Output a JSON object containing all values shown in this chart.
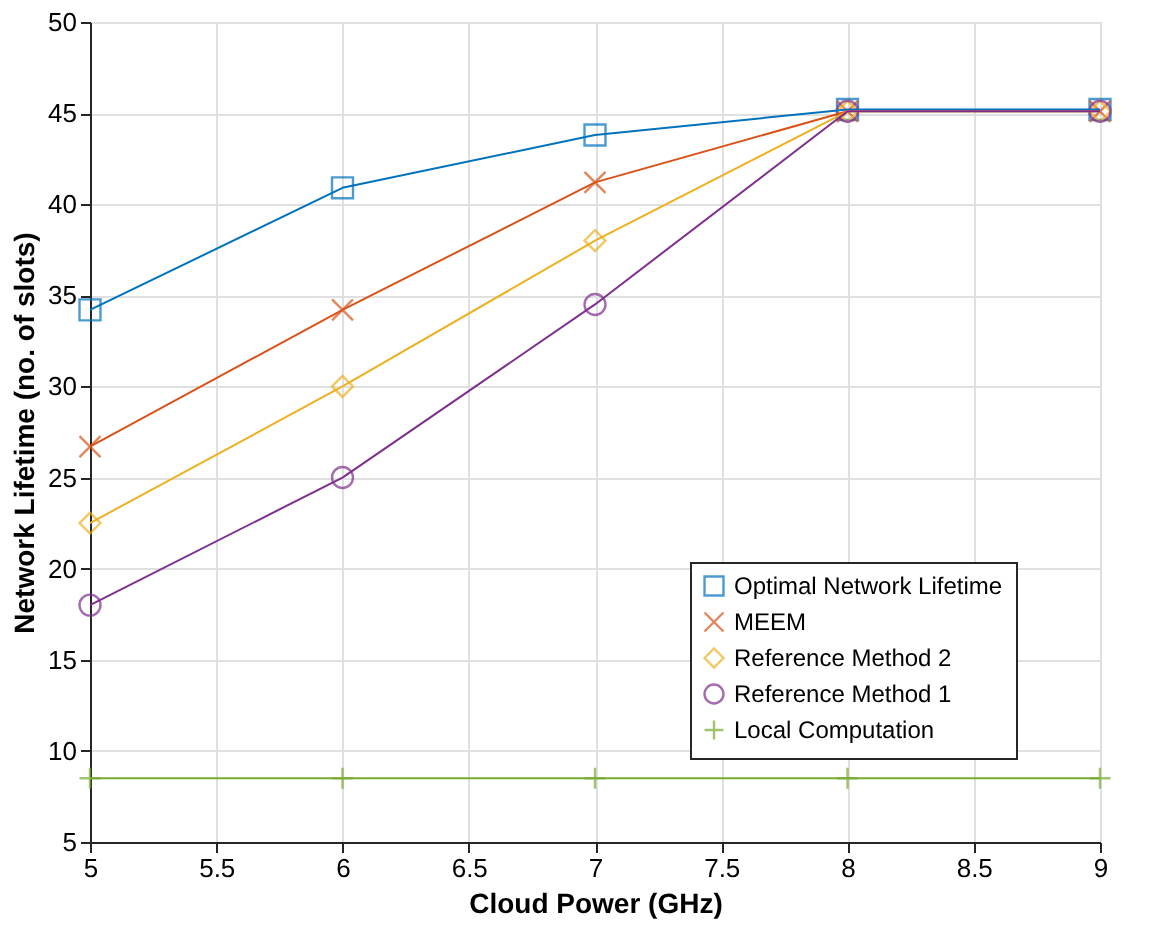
{
  "chart_data": {
    "type": "line",
    "xlabel": "Cloud Power (GHz)",
    "ylabel": "Network Lifetime (no. of slots)",
    "x": [
      5,
      6,
      7,
      8,
      9
    ],
    "series": [
      {
        "name": "Optimal Network Lifetime",
        "color": "#0072bd",
        "marker": "square",
        "values": [
          34.2,
          40.9,
          43.8,
          45.2,
          45.2
        ]
      },
      {
        "name": "MEEM",
        "color": "#d95319",
        "marker": "cross",
        "values": [
          26.7,
          34.2,
          41.2,
          45.1,
          45.1
        ]
      },
      {
        "name": "Reference Method 2",
        "color": "#edb120",
        "marker": "diamond",
        "values": [
          22.5,
          30,
          38,
          45.1,
          45.1
        ]
      },
      {
        "name": "Reference Method 1",
        "color": "#7e2f8e",
        "marker": "circle",
        "values": [
          18,
          25,
          34.5,
          45.1,
          45.1
        ]
      },
      {
        "name": "Local Computation",
        "color": "#77ac30",
        "marker": "plus",
        "values": [
          8.5,
          8.5,
          8.5,
          8.5,
          8.5
        ]
      }
    ],
    "xlim": [
      5,
      9
    ],
    "xticks": [
      {
        "value": 5,
        "label": "5"
      },
      5.5,
      {
        "value": 6,
        "label": "6"
      },
      6.5,
      {
        "value": 7,
        "label": "7"
      },
      7.5,
      {
        "value": 8,
        "label": "8"
      },
      8.5,
      {
        "value": 9,
        "label": "9"
      }
    ],
    "ylim": [
      5,
      50
    ],
    "yticks": [
      5,
      10,
      15,
      20,
      25,
      30,
      35,
      40,
      45,
      50
    ],
    "grid": true,
    "legend": "bottom right",
    "line_style": "solid"
  }
}
